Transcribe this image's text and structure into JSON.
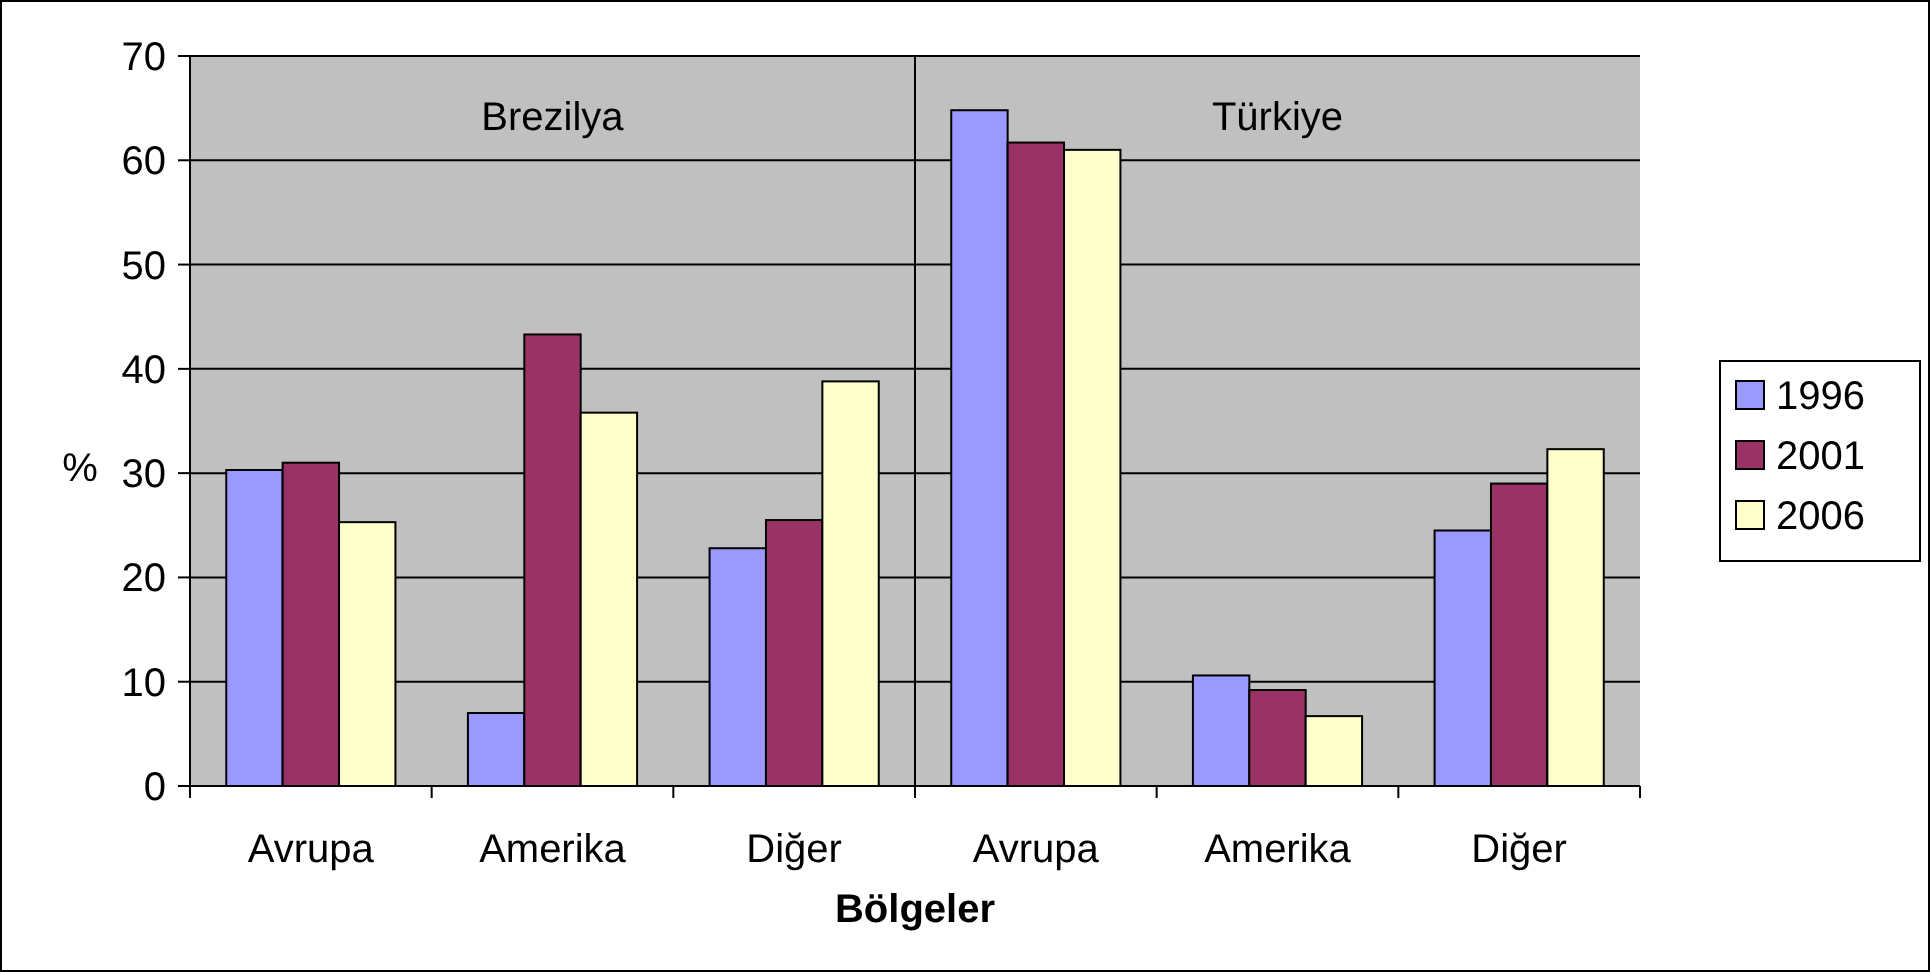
{
  "chart_data": {
    "type": "bar",
    "xlabel": "Bölgeler",
    "ylabel": "%",
    "categories": [
      "Avrupa",
      "Amerika",
      "Diğer",
      "Avrupa",
      "Amerika",
      "Diğer"
    ],
    "series": [
      {
        "name": "1996",
        "color": "#9999ff",
        "values": [
          30.3,
          7,
          22.8,
          64.8,
          10.6,
          24.5
        ]
      },
      {
        "name": "2001",
        "color": "#993366",
        "values": [
          31,
          43.3,
          25.5,
          61.7,
          9.2,
          29
        ]
      },
      {
        "name": "2006",
        "color": "#ffffcc",
        "values": [
          25.3,
          35.8,
          38.8,
          61,
          6.7,
          32.3
        ]
      }
    ],
    "annotations": [
      "Brezilya",
      "Türkiye"
    ],
    "ylim": [
      0,
      70
    ],
    "yticks": [
      0,
      10,
      20,
      30,
      40,
      50,
      60,
      70
    ],
    "grid": "y",
    "legend": "right"
  }
}
